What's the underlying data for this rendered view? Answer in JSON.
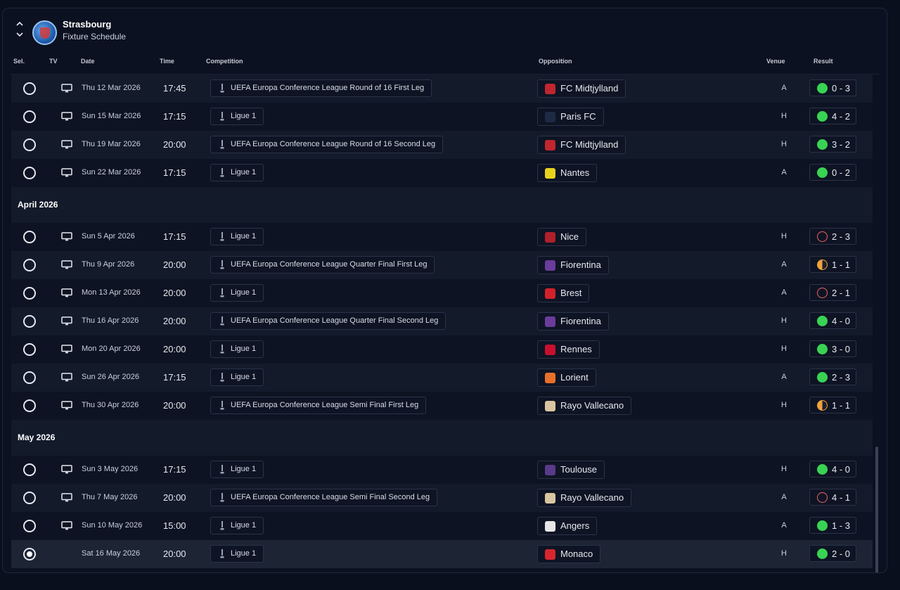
{
  "header": {
    "club": "Strasbourg",
    "subtitle": "Fixture Schedule"
  },
  "columns": {
    "sel": "Sel.",
    "tv": "TV",
    "date": "Date",
    "time": "Time",
    "competition": "Competition",
    "opposition": "Opposition",
    "venue": "Venue",
    "result": "Result"
  },
  "months": {
    "april": "April 2026",
    "may": "May 2026"
  },
  "fixtures": [
    {
      "date": "Thu 12 Mar 2026",
      "time": "17:45",
      "competition": "UEFA Europa Conference League Round of 16  First Leg",
      "opposition": "FC Midtjylland",
      "venue": "A",
      "result": "0 - 3",
      "outcome": "win",
      "badge_color": "#c0262d"
    },
    {
      "date": "Sun 15 Mar 2026",
      "time": "17:15",
      "competition": "Ligue 1",
      "opposition": "Paris FC",
      "venue": "H",
      "result": "4 - 2",
      "outcome": "win",
      "badge_color": "#1d2a44"
    },
    {
      "date": "Thu 19 Mar 2026",
      "time": "20:00",
      "competition": "UEFA Europa Conference League Round of 16  Second Leg",
      "opposition": "FC Midtjylland",
      "venue": "H",
      "result": "3 - 2",
      "outcome": "win",
      "badge_color": "#c0262d"
    },
    {
      "date": "Sun 22 Mar 2026",
      "time": "17:15",
      "competition": "Ligue 1",
      "opposition": "Nantes",
      "venue": "A",
      "result": "0 - 2",
      "outcome": "win",
      "badge_color": "#e8d21e"
    },
    {
      "date": "Sun 5 Apr 2026",
      "time": "17:15",
      "competition": "Ligue 1",
      "opposition": "Nice",
      "venue": "H",
      "result": "2 - 3",
      "outcome": "loss",
      "badge_color": "#b01f2a"
    },
    {
      "date": "Thu 9 Apr 2026",
      "time": "20:00",
      "competition": "UEFA Europa Conference League Quarter Final First Leg",
      "opposition": "Fiorentina",
      "venue": "A",
      "result": "1 - 1",
      "outcome": "draw",
      "badge_color": "#6a3c9c"
    },
    {
      "date": "Mon 13 Apr 2026",
      "time": "20:00",
      "competition": "Ligue 1",
      "opposition": "Brest",
      "venue": "A",
      "result": "2 - 1",
      "outcome": "loss",
      "badge_color": "#d3212b"
    },
    {
      "date": "Thu 16 Apr 2026",
      "time": "20:00",
      "competition": "UEFA Europa Conference League Quarter Final Second Leg",
      "opposition": "Fiorentina",
      "venue": "H",
      "result": "4 - 0",
      "outcome": "win",
      "badge_color": "#6a3c9c"
    },
    {
      "date": "Mon 20 Apr 2026",
      "time": "20:00",
      "competition": "Ligue 1",
      "opposition": "Rennes",
      "venue": "H",
      "result": "3 - 0",
      "outcome": "win",
      "badge_color": "#c8102e"
    },
    {
      "date": "Sun 26 Apr 2026",
      "time": "17:15",
      "competition": "Ligue 1",
      "opposition": "Lorient",
      "venue": "A",
      "result": "2 - 3",
      "outcome": "win",
      "badge_color": "#e8702a"
    },
    {
      "date": "Thu 30 Apr 2026",
      "time": "20:00",
      "competition": "UEFA Europa Conference League Semi Final First Leg",
      "opposition": "Rayo Vallecano",
      "venue": "H",
      "result": "1 - 1",
      "outcome": "draw",
      "badge_color": "#d9c6a0"
    },
    {
      "date": "Sun 3 May 2026",
      "time": "17:15",
      "competition": "Ligue 1",
      "opposition": "Toulouse",
      "venue": "H",
      "result": "4 - 0",
      "outcome": "win",
      "badge_color": "#5a3a8a"
    },
    {
      "date": "Thu 7 May 2026",
      "time": "20:00",
      "competition": "UEFA Europa Conference League Semi Final Second Leg",
      "opposition": "Rayo Vallecano",
      "venue": "A",
      "result": "4 - 1",
      "outcome": "loss",
      "badge_color": "#d9c6a0"
    },
    {
      "date": "Sun 10 May 2026",
      "time": "15:00",
      "competition": "Ligue 1",
      "opposition": "Angers",
      "venue": "A",
      "result": "1 - 3",
      "outcome": "win",
      "badge_color": "#e6e6e6"
    },
    {
      "date": "Sat 16 May 2026",
      "time": "20:00",
      "competition": "Ligue 1",
      "opposition": "Monaco",
      "venue": "H",
      "result": "2 - 0",
      "outcome": "win",
      "badge_color": "#d7262e",
      "selected": true
    }
  ]
}
